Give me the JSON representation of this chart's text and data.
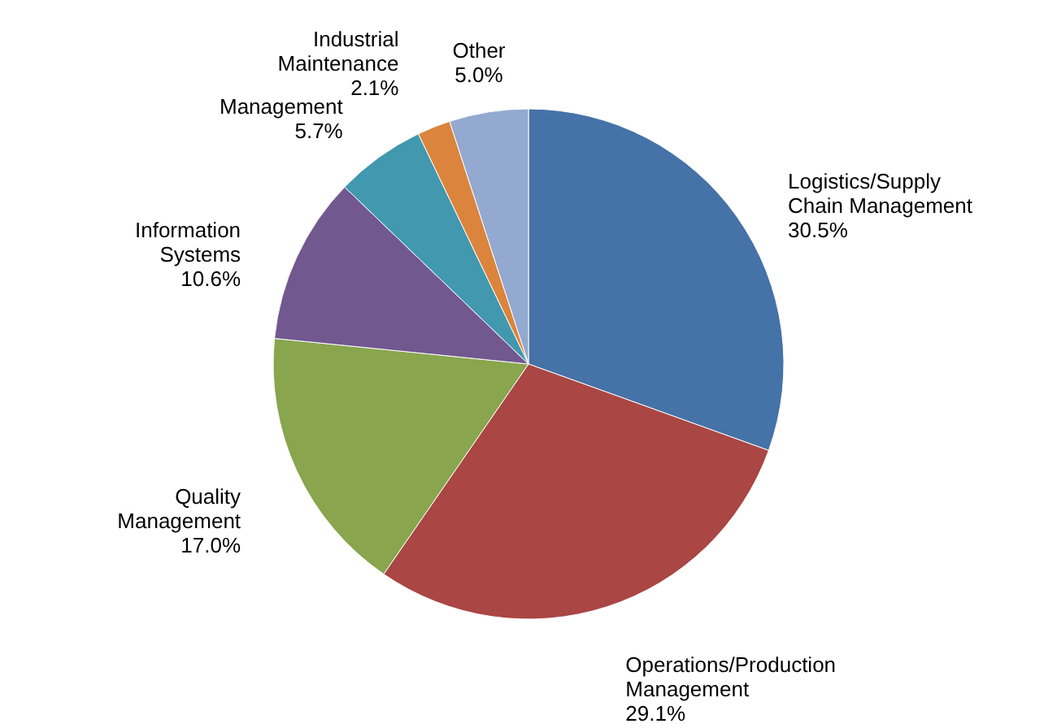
{
  "chart_data": {
    "type": "pie",
    "categories": [
      "Logistics/Supply Chain Management",
      "Operations/Production Management",
      "Quality Management",
      "Information Systems",
      "Management",
      "Industrial Maintenance",
      "Other"
    ],
    "values": [
      30.5,
      29.1,
      17.0,
      10.6,
      5.7,
      2.1,
      5.0
    ],
    "value_labels": [
      "30.5%",
      "29.1%",
      "17.0%",
      "10.6%",
      "5.7%",
      "2.1%",
      "5.0%"
    ],
    "colors": [
      "#4572a7",
      "#aa4643",
      "#89a54e",
      "#71588f",
      "#4198af",
      "#db843d",
      "#93a9cf"
    ]
  }
}
